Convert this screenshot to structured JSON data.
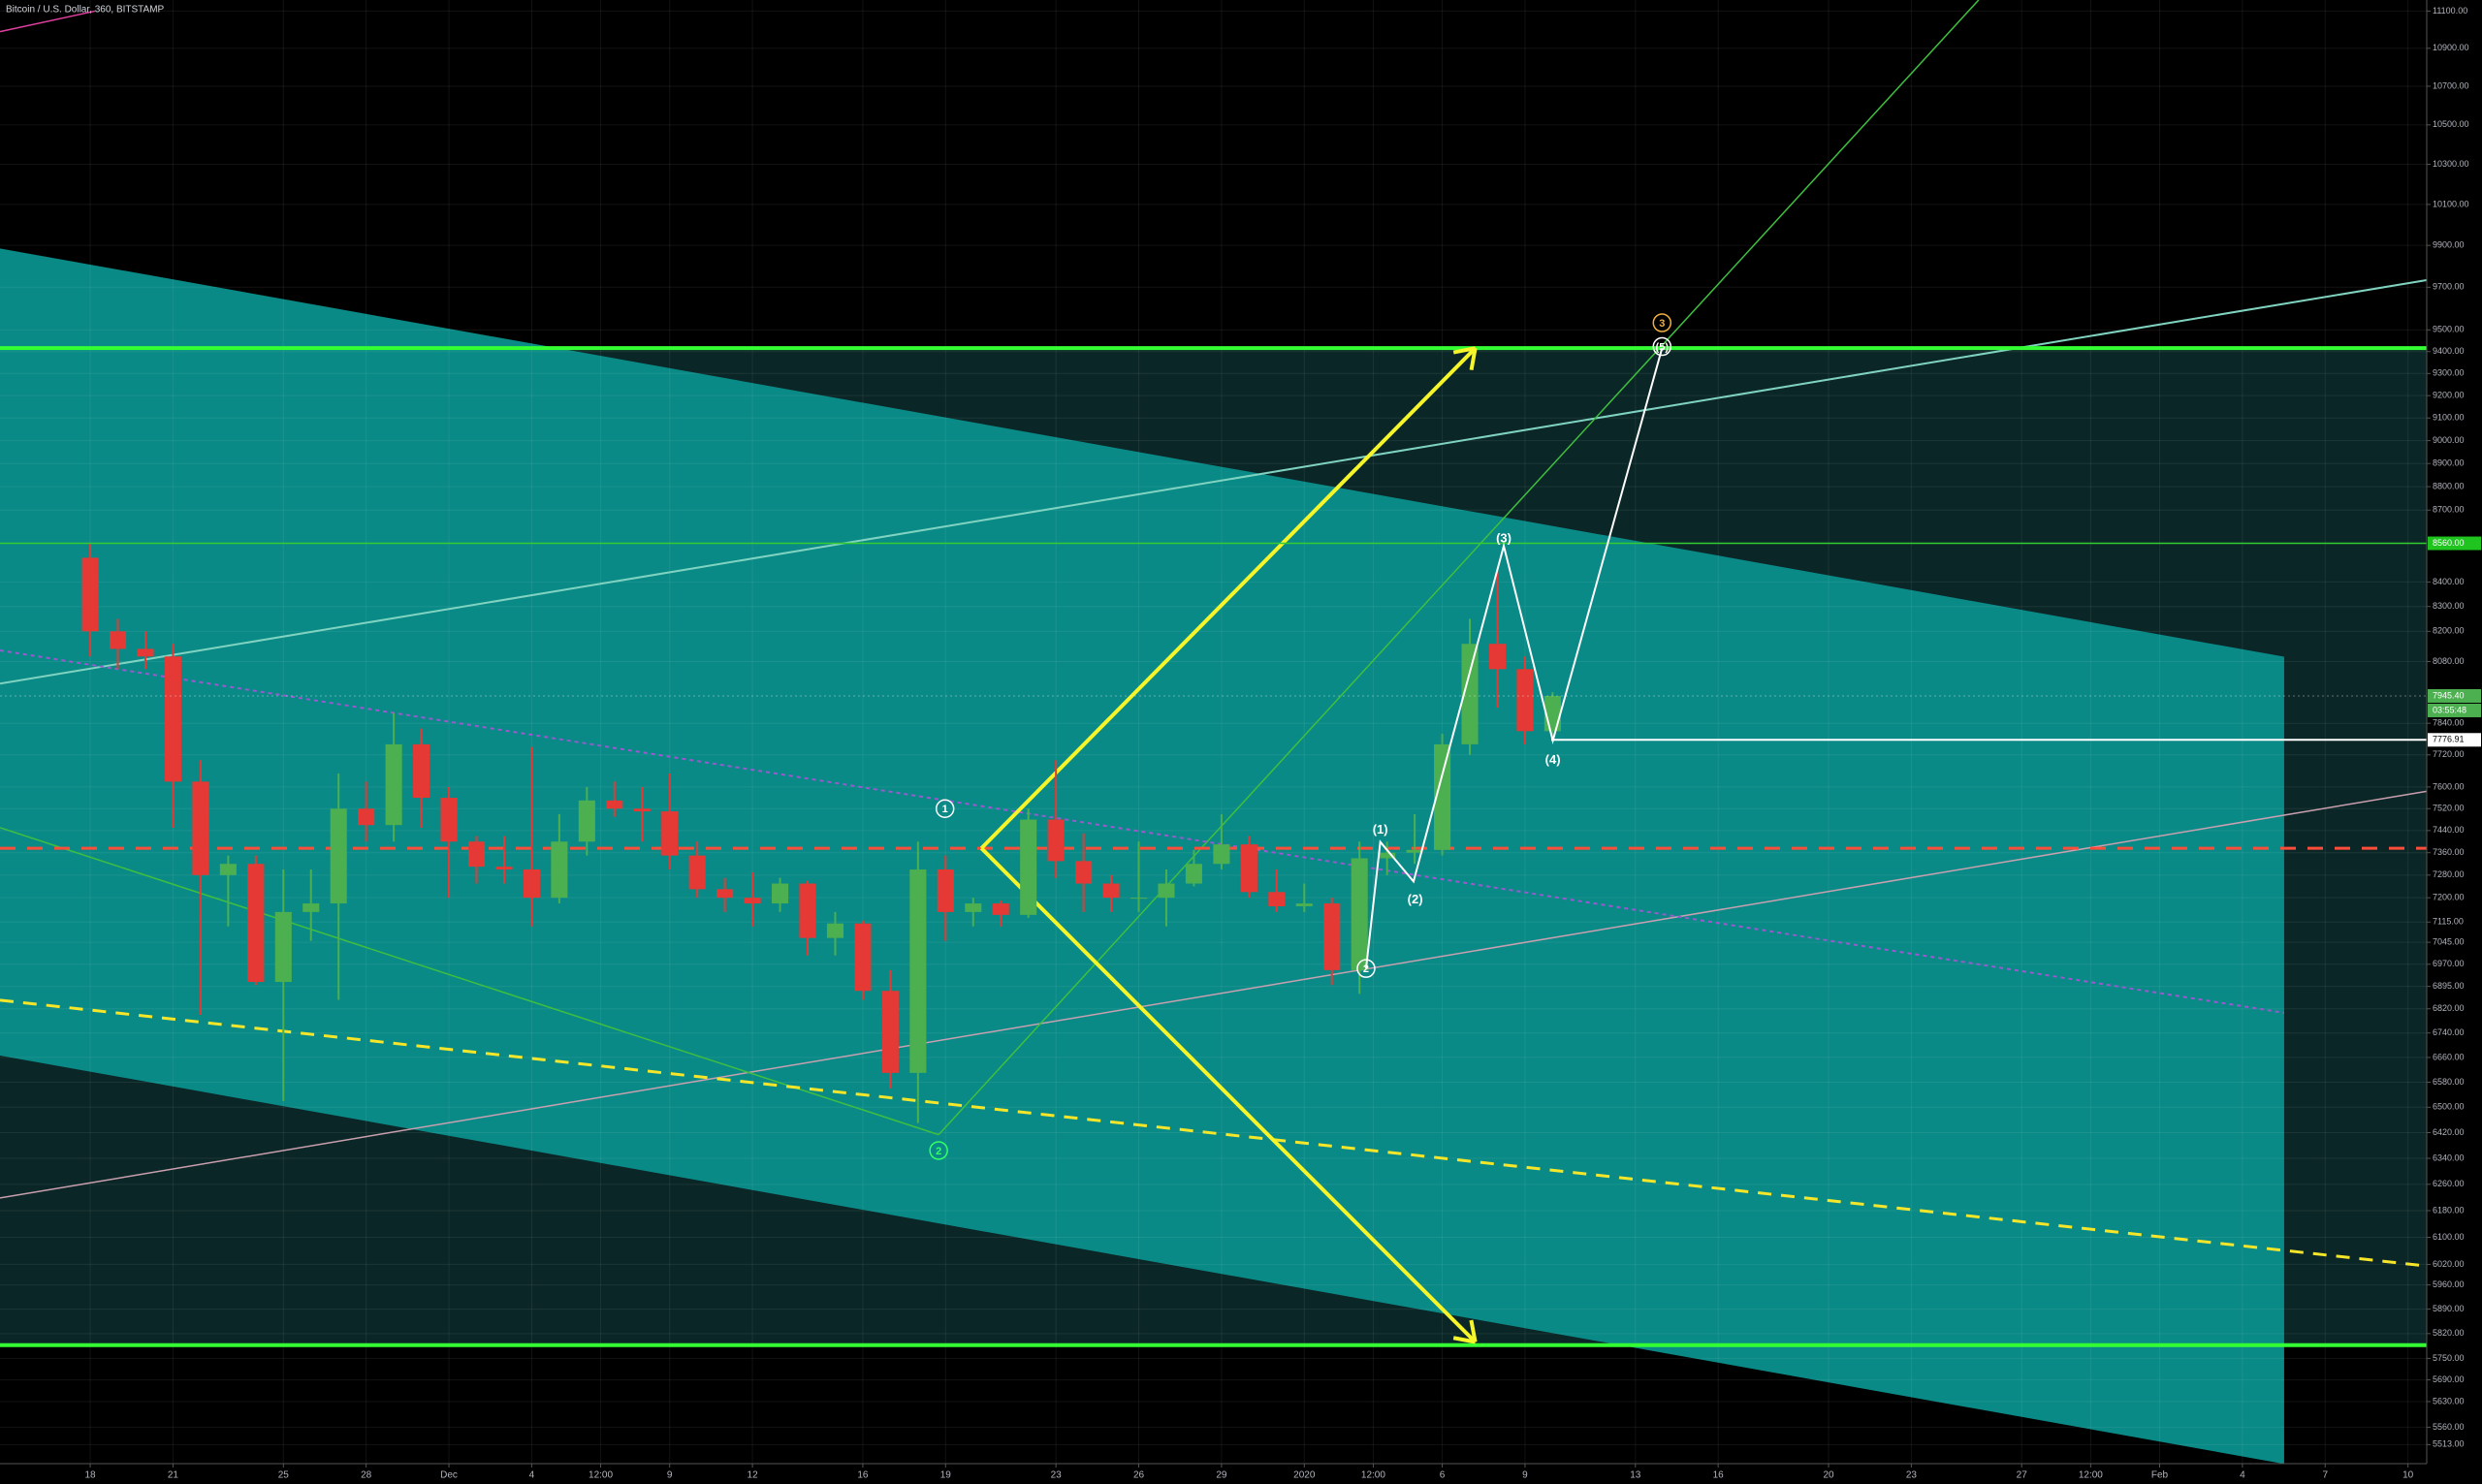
{
  "chart_data": {
    "type": "candlestick",
    "title": "Bitcoin / U.S. Dollar, 360, BITSTAMP",
    "log_scale": true,
    "grid": true,
    "up_color": "#4caf50",
    "down_color": "#e53935",
    "xlim": [
      -3.27,
      84.68
    ],
    "ylim": [
      5462,
      11160
    ],
    "x": [
      0,
      1,
      2,
      3,
      4,
      5,
      6,
      7,
      8,
      9,
      10,
      11,
      12,
      13,
      14,
      15,
      16,
      17,
      18,
      19,
      20,
      21,
      22,
      23,
      24,
      25,
      26,
      27,
      28,
      29,
      30,
      31,
      32,
      33,
      34,
      35,
      36,
      37,
      38,
      39,
      40,
      41,
      42,
      43,
      44,
      45,
      46,
      47,
      48,
      49,
      50,
      51,
      52,
      53
    ],
    "open": [
      8500,
      8200,
      8130,
      8100,
      7620,
      7280,
      7320,
      6910,
      7150,
      7180,
      7520,
      7460,
      7760,
      7560,
      7400,
      7310,
      7300,
      7200,
      7400,
      7550,
      7520,
      7510,
      7350,
      7230,
      7200,
      7180,
      7250,
      7060,
      7110,
      6880,
      6610,
      7300,
      7150,
      7180,
      7140,
      7480,
      7330,
      7250,
      7200,
      7200,
      7250,
      7320,
      7390,
      7220,
      7170,
      7180,
      6950,
      7340,
      7360,
      7370,
      7760,
      8150,
      8050,
      7810
    ],
    "high": [
      8560,
      8250,
      8200,
      8150,
      7700,
      7350,
      7350,
      7300,
      7300,
      7650,
      7620,
      7880,
      7820,
      7600,
      7420,
      7420,
      7750,
      7500,
      7600,
      7620,
      7600,
      7650,
      7400,
      7270,
      7290,
      7270,
      7260,
      7150,
      7120,
      6950,
      7400,
      7350,
      7200,
      7190,
      7520,
      7700,
      7430,
      7280,
      7400,
      7300,
      7370,
      7500,
      7420,
      7300,
      7250,
      7200,
      7400,
      7400,
      7500,
      7800,
      8250,
      8450,
      8100,
      7960
    ],
    "low": [
      8100,
      8050,
      8050,
      7450,
      6800,
      7100,
      6900,
      6520,
      7050,
      6850,
      7400,
      7400,
      7450,
      7200,
      7250,
      7250,
      7100,
      7180,
      7350,
      7490,
      7400,
      7300,
      7200,
      7150,
      7100,
      7150,
      7000,
      7000,
      6850,
      6560,
      6450,
      7050,
      7100,
      7100,
      7130,
      7270,
      7150,
      7150,
      7150,
      7100,
      7240,
      7300,
      7200,
      7150,
      7150,
      6900,
      6870,
      7280,
      7320,
      7350,
      7720,
      7900,
      7760,
      7770
    ],
    "close": [
      8200,
      8130,
      8100,
      7620,
      7280,
      7320,
      6910,
      7150,
      7180,
      7520,
      7460,
      7760,
      7560,
      7400,
      7310,
      7300,
      7200,
      7400,
      7550,
      7520,
      7510,
      7350,
      7230,
      7200,
      7180,
      7250,
      7060,
      7110,
      6880,
      6610,
      7300,
      7150,
      7180,
      7140,
      7480,
      7330,
      7250,
      7200,
      7200,
      7250,
      7320,
      7390,
      7220,
      7170,
      7180,
      6950,
      7340,
      7360,
      7370,
      7760,
      8150,
      8050,
      7810,
      7945.4
    ],
    "xticks": [
      {
        "value": 0,
        "label": "18"
      },
      {
        "value": 3,
        "label": "21"
      },
      {
        "value": 7,
        "label": "25"
      },
      {
        "value": 10,
        "label": "28"
      },
      {
        "value": 13,
        "label": "Dec"
      },
      {
        "value": 16,
        "label": "4"
      },
      {
        "value": 18.5,
        "label": "12:00"
      },
      {
        "value": 21,
        "label": "9"
      },
      {
        "value": 24,
        "label": "12"
      },
      {
        "value": 28,
        "label": "16"
      },
      {
        "value": 31,
        "label": "19"
      },
      {
        "value": 35,
        "label": "23"
      },
      {
        "value": 38,
        "label": "26"
      },
      {
        "value": 41,
        "label": "29"
      },
      {
        "value": 44,
        "label": "2020"
      },
      {
        "value": 46.5,
        "label": "12:00"
      },
      {
        "value": 49,
        "label": "6"
      },
      {
        "value": 52,
        "label": "9"
      },
      {
        "value": 56,
        "label": "13"
      },
      {
        "value": 59,
        "label": "16"
      },
      {
        "value": 63,
        "label": "20"
      },
      {
        "value": 66,
        "label": "23"
      },
      {
        "value": 70,
        "label": "27"
      },
      {
        "value": 72.5,
        "label": "12:00"
      },
      {
        "value": 75,
        "label": "Feb"
      },
      {
        "value": 78,
        "label": "4"
      },
      {
        "value": 81,
        "label": "7"
      },
      {
        "value": 84,
        "label": "10"
      }
    ],
    "yticks": [
      {
        "value": 11100,
        "label": "11100.00"
      },
      {
        "value": 10900,
        "label": "10900.00"
      },
      {
        "value": 10700,
        "label": "10700.00"
      },
      {
        "value": 10500,
        "label": "10500.00"
      },
      {
        "value": 10300,
        "label": "10300.00"
      },
      {
        "value": 10100,
        "label": "10100.00"
      },
      {
        "value": 9900,
        "label": "9900.00"
      },
      {
        "value": 9700,
        "label": "9700.00"
      },
      {
        "value": 9500,
        "label": "9500.00"
      },
      {
        "value": 9400,
        "label": "9400.00"
      },
      {
        "value": 9300,
        "label": "9300.00"
      },
      {
        "value": 9200,
        "label": "9200.00"
      },
      {
        "value": 9100,
        "label": "9100.00"
      },
      {
        "value": 9000,
        "label": "9000.00"
      },
      {
        "value": 8900,
        "label": "8900.00"
      },
      {
        "value": 8800,
        "label": "8800.00"
      },
      {
        "value": 8700,
        "label": "8700.00"
      },
      {
        "value": 8400,
        "label": "8400.00"
      },
      {
        "value": 8300,
        "label": "8300.00"
      },
      {
        "value": 8200,
        "label": "8200.00"
      },
      {
        "value": 8080,
        "label": "8080.00"
      },
      {
        "value": 7840,
        "label": "7840.00"
      },
      {
        "value": 7720,
        "label": "7720.00"
      },
      {
        "value": 7600,
        "label": "7600.00"
      },
      {
        "value": 7520,
        "label": "7520.00"
      },
      {
        "value": 7440,
        "label": "7440.00"
      },
      {
        "value": 7360,
        "label": "7360.00"
      },
      {
        "value": 7280,
        "label": "7280.00"
      },
      {
        "value": 7200,
        "label": "7200.00"
      },
      {
        "value": 7115,
        "label": "7115.00"
      },
      {
        "value": 7045,
        "label": "7045.00"
      },
      {
        "value": 6970,
        "label": "6970.00"
      },
      {
        "value": 6895,
        "label": "6895.00"
      },
      {
        "value": 6820,
        "label": "6820.00"
      },
      {
        "value": 6740,
        "label": "6740.00"
      },
      {
        "value": 6660,
        "label": "6660.00"
      },
      {
        "value": 6580,
        "label": "6580.00"
      },
      {
        "value": 6500,
        "label": "6500.00"
      },
      {
        "value": 6420,
        "label": "6420.00"
      },
      {
        "value": 6340,
        "label": "6340.00"
      },
      {
        "value": 6260,
        "label": "6260.00"
      },
      {
        "value": 6180,
        "label": "6180.00"
      },
      {
        "value": 6100,
        "label": "6100.00"
      },
      {
        "value": 6020,
        "label": "6020.00"
      },
      {
        "value": 5960,
        "label": "5960.00"
      },
      {
        "value": 5890,
        "label": "5890.00"
      },
      {
        "value": 5820,
        "label": "5820.00"
      },
      {
        "value": 5750,
        "label": "5750.00"
      },
      {
        "value": 5690,
        "label": "5690.00"
      },
      {
        "value": 5630,
        "label": "5630.00"
      },
      {
        "value": 5560,
        "label": "5560.00"
      },
      {
        "value": 5513,
        "label": "5513.00"
      }
    ],
    "price_labels": [
      {
        "value": 8560,
        "label": "8560.00",
        "color": "#1fc41f"
      },
      {
        "value": 7945.4,
        "label": "7945.40",
        "color": "#4caf50"
      },
      {
        "value": 7776.91,
        "label": "7776.91",
        "color": "#ffffff"
      }
    ],
    "countdown": "03:55:48",
    "annotations": [
      "(1)",
      "(2)",
      "(3)",
      "(4)",
      "(5)",
      "3",
      "2",
      "1",
      "2"
    ]
  }
}
